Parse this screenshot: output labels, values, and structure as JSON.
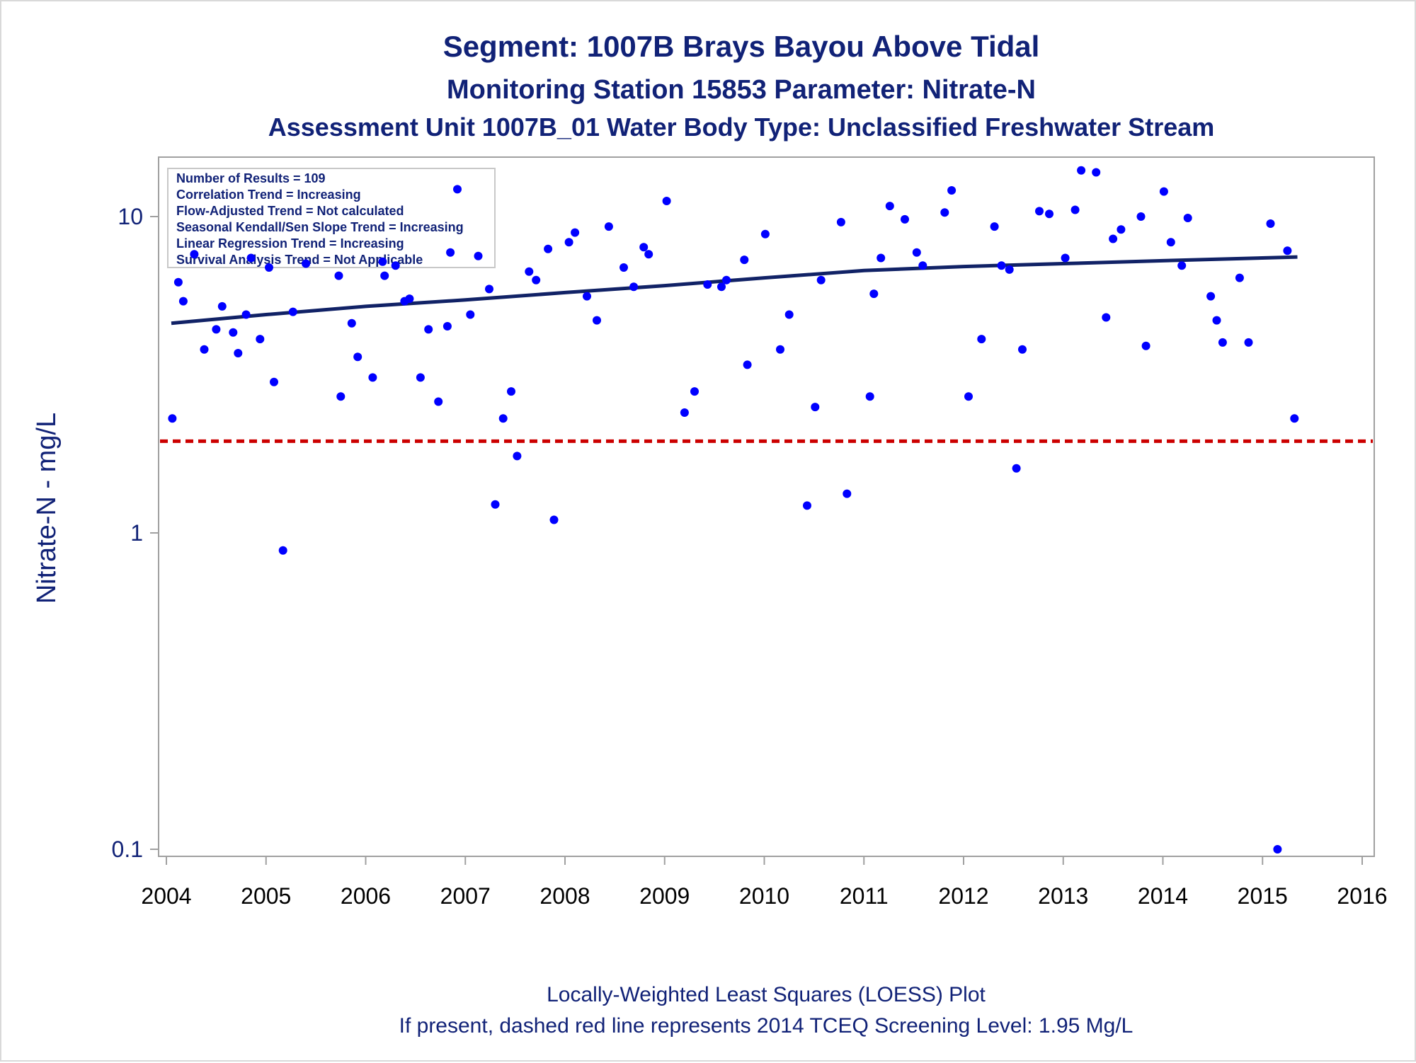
{
  "titles": {
    "line1": "Segment: 1007B  Brays Bayou Above Tidal",
    "line2": "Monitoring Station 15853 Parameter: Nitrate-N",
    "line3": "Assessment Unit 1007B_01   Water Body Type: Unclassified Freshwater Stream"
  },
  "footnotes": {
    "line1": "Locally-Weighted Least Squares (LOESS) Plot",
    "line2": "If present, dashed red line represents 2014 TCEQ Screening Level: 1.95 Mg/L"
  },
  "stats_box": [
    "Number of Results = 109",
    "Correlation Trend = Increasing",
    "Flow-Adjusted Trend = Not calculated",
    "Seasonal Kendall/Sen Slope Trend = Increasing",
    "Linear Regression Trend = Increasing",
    "Survival Analysis Trend = Not Applicable"
  ],
  "colors": {
    "points": "#0000ff",
    "trend_line": "#112266",
    "screening_line": "#cc0000",
    "text": "#112277",
    "axis": "#a0a0a0"
  },
  "chart_data": {
    "type": "scatter",
    "ylabel": "Nitrate-N - mg/L",
    "xlabel": "",
    "y_scale": "log",
    "xlim": [
      2004,
      2016
    ],
    "ylim": [
      0.1,
      15
    ],
    "x_ticks": [
      "2004",
      "2005",
      "2006",
      "2007",
      "2008",
      "2009",
      "2010",
      "2011",
      "2012",
      "2013",
      "2014",
      "2015",
      "2016"
    ],
    "y_ticks": [
      "0.1",
      "1",
      "10"
    ],
    "grid": false,
    "screening_level": 1.95,
    "series": [
      {
        "points": [
          [
            2004.06,
            2.3
          ],
          [
            2004.12,
            6.2
          ],
          [
            2004.17,
            5.4
          ],
          [
            2004.28,
            7.6
          ],
          [
            2004.38,
            3.8
          ],
          [
            2004.5,
            4.4
          ],
          [
            2004.56,
            5.2
          ],
          [
            2004.67,
            4.3
          ],
          [
            2004.72,
            3.7
          ],
          [
            2004.8,
            4.9
          ],
          [
            2004.85,
            7.4
          ],
          [
            2004.94,
            4.1
          ],
          [
            2005.03,
            6.9
          ],
          [
            2005.08,
            3.0
          ],
          [
            2005.17,
            0.88
          ],
          [
            2005.27,
            5.0
          ],
          [
            2005.4,
            7.1
          ],
          [
            2005.73,
            6.5
          ],
          [
            2005.75,
            2.7
          ],
          [
            2005.86,
            4.6
          ],
          [
            2005.92,
            3.6
          ],
          [
            2006.07,
            3.1
          ],
          [
            2006.17,
            7.2
          ],
          [
            2006.19,
            6.5
          ],
          [
            2006.3,
            7.0
          ],
          [
            2006.39,
            5.4
          ],
          [
            2006.44,
            5.5
          ],
          [
            2006.55,
            3.1
          ],
          [
            2006.63,
            4.4
          ],
          [
            2006.73,
            2.6
          ],
          [
            2006.82,
            4.5
          ],
          [
            2006.85,
            7.7
          ],
          [
            2006.92,
            12.2
          ],
          [
            2007.05,
            4.9
          ],
          [
            2007.13,
            7.5
          ],
          [
            2007.24,
            5.9
          ],
          [
            2007.3,
            1.23
          ],
          [
            2007.38,
            2.3
          ],
          [
            2007.46,
            2.8
          ],
          [
            2007.52,
            1.75
          ],
          [
            2007.64,
            6.7
          ],
          [
            2007.71,
            6.3
          ],
          [
            2007.83,
            7.9
          ],
          [
            2007.89,
            1.1
          ],
          [
            2008.04,
            8.3
          ],
          [
            2008.1,
            8.9
          ],
          [
            2008.22,
            5.6
          ],
          [
            2008.32,
            4.7
          ],
          [
            2008.44,
            9.3
          ],
          [
            2008.59,
            6.9
          ],
          [
            2008.69,
            6.0
          ],
          [
            2008.79,
            8.0
          ],
          [
            2008.84,
            7.6
          ],
          [
            2009.02,
            11.2
          ],
          [
            2009.2,
            2.4
          ],
          [
            2009.3,
            2.8
          ],
          [
            2009.43,
            6.1
          ],
          [
            2009.57,
            6.0
          ],
          [
            2009.62,
            6.3
          ],
          [
            2009.8,
            7.3
          ],
          [
            2009.83,
            3.4
          ],
          [
            2010.01,
            8.8
          ],
          [
            2010.16,
            3.8
          ],
          [
            2010.25,
            4.9
          ],
          [
            2010.43,
            1.22
          ],
          [
            2010.51,
            2.5
          ],
          [
            2010.57,
            6.3
          ],
          [
            2010.77,
            9.6
          ],
          [
            2010.83,
            1.33
          ],
          [
            2011.06,
            2.7
          ],
          [
            2011.1,
            5.7
          ],
          [
            2011.17,
            7.4
          ],
          [
            2011.26,
            10.8
          ],
          [
            2011.41,
            9.8
          ],
          [
            2011.53,
            7.7
          ],
          [
            2011.59,
            7.0
          ],
          [
            2011.81,
            10.3
          ],
          [
            2011.88,
            12.1
          ],
          [
            2012.05,
            2.7
          ],
          [
            2012.18,
            4.1
          ],
          [
            2012.31,
            9.3
          ],
          [
            2012.38,
            7.0
          ],
          [
            2012.46,
            6.8
          ],
          [
            2012.53,
            1.6
          ],
          [
            2012.59,
            3.8
          ],
          [
            2012.76,
            10.4
          ],
          [
            2012.86,
            10.2
          ],
          [
            2013.02,
            7.4
          ],
          [
            2013.12,
            10.5
          ],
          [
            2013.18,
            14.0
          ],
          [
            2013.33,
            13.8
          ],
          [
            2013.43,
            4.8
          ],
          [
            2013.5,
            8.5
          ],
          [
            2013.58,
            9.1
          ],
          [
            2013.78,
            10.0
          ],
          [
            2013.83,
            3.9
          ],
          [
            2014.01,
            12.0
          ],
          [
            2014.08,
            8.3
          ],
          [
            2014.19,
            7.0
          ],
          [
            2014.25,
            9.9
          ],
          [
            2014.48,
            5.6
          ],
          [
            2014.54,
            4.7
          ],
          [
            2014.6,
            4.0
          ],
          [
            2014.77,
            6.4
          ],
          [
            2014.86,
            4.0
          ],
          [
            2015.08,
            9.5
          ],
          [
            2015.15,
            0.1
          ],
          [
            2015.25,
            7.8
          ],
          [
            2015.32,
            2.3
          ]
        ]
      }
    ],
    "trend_line": [
      [
        2004.05,
        4.6
      ],
      [
        2005.0,
        4.9
      ],
      [
        2006.0,
        5.2
      ],
      [
        2007.0,
        5.45
      ],
      [
        2008.0,
        5.75
      ],
      [
        2009.0,
        6.05
      ],
      [
        2010.0,
        6.4
      ],
      [
        2011.0,
        6.75
      ],
      [
        2012.0,
        6.95
      ],
      [
        2013.0,
        7.1
      ],
      [
        2014.0,
        7.25
      ],
      [
        2015.35,
        7.45
      ]
    ]
  }
}
